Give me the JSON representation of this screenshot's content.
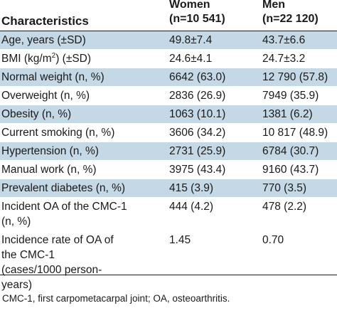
{
  "header": {
    "characteristics": "Characteristics",
    "women_label": "Women",
    "women_n": "(n=10 541)",
    "men_label": "Men",
    "men_n": "(n=22 120)"
  },
  "rows": [
    {
      "label": "Age, years (±SD)",
      "women": "49.8±7.4",
      "men": "43.7±6.6",
      "shade": true
    },
    {
      "label_pre": "BMI (kg/m",
      "label_sup": "2",
      "label_post": ") (±SD)",
      "women": "24.6±4.1",
      "men": "24.7±3.2",
      "shade": false
    },
    {
      "label": "Normal weight (n, %)",
      "women": "6642 (63.0)",
      "men": "12 790 (57.8)",
      "shade": true
    },
    {
      "label": "Overweight (n, %)",
      "women": "2836 (26.9)",
      "men": "7949 (35.9)",
      "shade": false
    },
    {
      "label": "Obesity (n, %)",
      "women": "1063 (10.1)",
      "men": "1381 (6.2)",
      "shade": true
    },
    {
      "label": "Current smoking (n, %)",
      "women": "3606 (34.2)",
      "men": "10 817 (48.9)",
      "shade": false
    },
    {
      "label": "Hypertension (n, %)",
      "women": "2731 (25.9)",
      "men": "6784 (30.7)",
      "shade": true
    },
    {
      "label": "Manual work (n, %)",
      "women": "3975 (43.4)",
      "men": "9160 (43.7)",
      "shade": false
    },
    {
      "label": "Prevalent diabetes (n, %)",
      "women": "415 (3.9)",
      "men": "770 (3.5)",
      "shade": true
    },
    {
      "label_lines": [
        "Incident OA of the CMC-1",
        "(n, %)"
      ],
      "women": "444 (4.2)",
      "men": "478 (2.2)",
      "shade": false
    },
    {
      "label_lines": [
        "Incidence rate of OA of",
        "the CMC-1",
        "(cases/1000 person-",
        "years)"
      ],
      "women": "1.45",
      "men": "0.70",
      "shade": false
    }
  ],
  "footnote": "CMC-1, first carpometacarpal joint; OA, osteoarthritis.",
  "colors": {
    "row_shade": "#c4d8e6",
    "text": "#1a1a1a",
    "background": "#ffffff"
  }
}
